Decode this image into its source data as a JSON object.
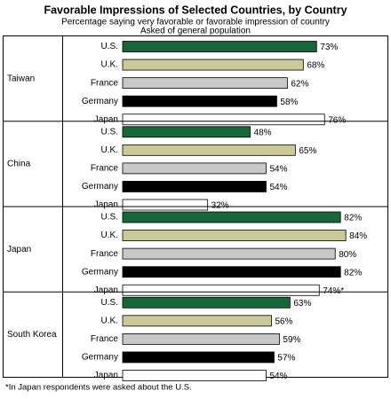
{
  "chart_data": {
    "type": "bar",
    "orientation": "horizontal",
    "title": "Favorable Impressions of Selected Countries, by Country",
    "subtitle": [
      "Percentage saying very favorable or favorable impression of country",
      "Asked of general population"
    ],
    "note": "*In Japan respondents were asked about the U.S.",
    "xlim": [
      0,
      100
    ],
    "colors": [
      "#17673a",
      "#c9c99a",
      "#c8c8c8",
      "#000000",
      "#ffffff"
    ],
    "panels": [
      {
        "name": "Taiwan",
        "categories": [
          "U.S.",
          "U.K.",
          "France",
          "Germany",
          "Japan"
        ],
        "values": [
          73,
          68,
          62,
          58,
          76
        ],
        "value_labels": [
          "73%",
          "68%",
          "62%",
          "58%",
          "76%"
        ]
      },
      {
        "name": "China",
        "categories": [
          "U.S.",
          "U.K.",
          "France",
          "Germany",
          "Japan"
        ],
        "values": [
          48,
          65,
          54,
          54,
          32
        ],
        "value_labels": [
          "48%",
          "65%",
          "54%",
          "54%",
          "32%"
        ]
      },
      {
        "name": "Japan",
        "categories": [
          "U.S.",
          "U.K.",
          "France",
          "Germany",
          "Japan"
        ],
        "values": [
          82,
          84,
          80,
          82,
          74
        ],
        "value_labels": [
          "82%",
          "84%",
          "80%",
          "82%",
          "74%*"
        ]
      },
      {
        "name": "South Korea",
        "categories": [
          "U.S.",
          "U.K.",
          "France",
          "Germany",
          "Japan"
        ],
        "values": [
          63,
          56,
          59,
          57,
          54
        ],
        "value_labels": [
          "63%",
          "56%",
          "59%",
          "57%",
          "54%"
        ]
      }
    ]
  }
}
